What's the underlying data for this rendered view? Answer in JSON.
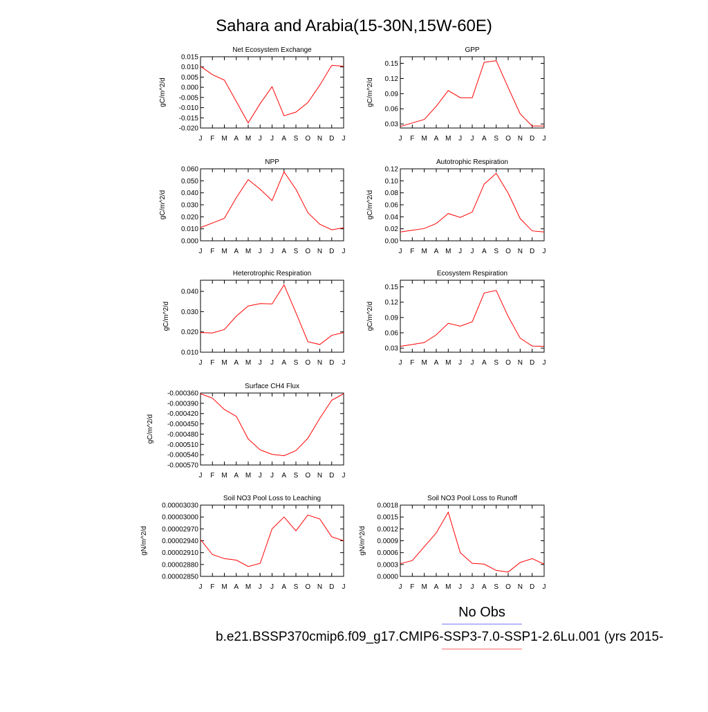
{
  "page": {
    "title": "Sahara and Arabia(15-30N,15W-60E)",
    "legend": {
      "obs_label": "No Obs",
      "obs_color": "#8c8cff",
      "case_label": "b.e21.BSSP370cmip6.f09_g17.CMIP6-SSP3-7.0-SSP1-2.6Lu.001 (yrs 2015-",
      "case_color": "#ff7f7f"
    }
  },
  "chart_data": [
    {
      "type": "line",
      "title": "Net Ecosystem Exchange",
      "ylabel": "gC/m^2/d",
      "x": [
        "J",
        "F",
        "M",
        "A",
        "M",
        "J",
        "J",
        "A",
        "S",
        "O",
        "N",
        "D",
        "J"
      ],
      "ylim": [
        -0.02,
        0.015
      ],
      "yticks": [
        "0.015",
        "0.010",
        "0.005",
        "0.000",
        "-0.005",
        "-0.010",
        "-0.015",
        "-0.020"
      ],
      "series": [
        {
          "color": "#ff0000",
          "values": [
            0.0103,
            0.0062,
            0.0035,
            -0.007,
            -0.0175,
            -0.008,
            0.0003,
            -0.014,
            -0.0122,
            -0.0075,
            0.001,
            0.0108,
            0.0103
          ]
        }
      ]
    },
    {
      "type": "line",
      "title": "GPP",
      "ylabel": "gC/m^2/d",
      "x": [
        "J",
        "F",
        "M",
        "A",
        "M",
        "J",
        "J",
        "A",
        "S",
        "O",
        "N",
        "D",
        "J"
      ],
      "ylim": [
        0.022,
        0.163
      ],
      "yticks": [
        "0.15",
        "0.12",
        "0.09",
        "0.06",
        "0.03"
      ],
      "series": [
        {
          "color": "#ff0000",
          "values": [
            0.025,
            0.032,
            0.039,
            0.065,
            0.096,
            0.082,
            0.082,
            0.152,
            0.155,
            0.102,
            0.05,
            0.026,
            0.026
          ]
        }
      ]
    },
    {
      "type": "line",
      "title": "NPP",
      "ylabel": "gC/m^2/d",
      "x": [
        "J",
        "F",
        "M",
        "A",
        "M",
        "J",
        "J",
        "A",
        "S",
        "O",
        "N",
        "D",
        "J"
      ],
      "ylim": [
        0.0,
        0.06
      ],
      "yticks": [
        "0.060",
        "0.050",
        "0.040",
        "0.030",
        "0.020",
        "0.010",
        "0.000"
      ],
      "series": [
        {
          "color": "#ff0000",
          "values": [
            0.011,
            0.0148,
            0.0187,
            0.036,
            0.051,
            0.043,
            0.0335,
            0.0575,
            0.043,
            0.0235,
            0.0138,
            0.0092,
            0.0108
          ]
        }
      ]
    },
    {
      "type": "line",
      "title": "Autotrophic Respiration",
      "ylabel": "gC/m^2/d",
      "x": [
        "J",
        "F",
        "M",
        "A",
        "M",
        "J",
        "J",
        "A",
        "S",
        "O",
        "N",
        "D",
        "J"
      ],
      "ylim": [
        0.0,
        0.12
      ],
      "yticks": [
        "0.12",
        "0.10",
        "0.08",
        "0.06",
        "0.04",
        "0.02",
        "0.00"
      ],
      "series": [
        {
          "color": "#ff0000",
          "values": [
            0.0148,
            0.0175,
            0.0205,
            0.029,
            0.0455,
            0.039,
            0.048,
            0.0945,
            0.1125,
            0.0795,
            0.037,
            0.0165,
            0.0148
          ]
        }
      ]
    },
    {
      "type": "line",
      "title": "Heterotrophic Respiration",
      "ylabel": "gC/m^2/d",
      "x": [
        "J",
        "F",
        "M",
        "A",
        "M",
        "J",
        "J",
        "A",
        "S",
        "O",
        "N",
        "D",
        "J"
      ],
      "ylim": [
        0.01,
        0.0455
      ],
      "yticks": [
        "0.040",
        "0.030",
        "0.020",
        "0.010"
      ],
      "series": [
        {
          "color": "#ff0000",
          "values": [
            0.0197,
            0.0195,
            0.0212,
            0.0278,
            0.0328,
            0.034,
            0.0338,
            0.0432,
            0.0295,
            0.0152,
            0.0138,
            0.0183,
            0.0197
          ]
        }
      ]
    },
    {
      "type": "line",
      "title": "Ecosystem Respiration",
      "ylabel": "gC/m^2/d",
      "x": [
        "J",
        "F",
        "M",
        "A",
        "M",
        "J",
        "J",
        "A",
        "S",
        "O",
        "N",
        "D",
        "J"
      ],
      "ylim": [
        0.022,
        0.163
      ],
      "yticks": [
        "0.15",
        "0.12",
        "0.09",
        "0.06",
        "0.03"
      ],
      "series": [
        {
          "color": "#ff0000",
          "values": [
            0.0335,
            0.037,
            0.041,
            0.056,
            0.0785,
            0.073,
            0.0815,
            0.138,
            0.143,
            0.092,
            0.0495,
            0.034,
            0.0335
          ]
        }
      ]
    },
    {
      "type": "line",
      "title": "Surface CH4 Flux",
      "ylabel": "gC/m^2/d",
      "x": [
        "J",
        "F",
        "M",
        "A",
        "M",
        "J",
        "J",
        "A",
        "S",
        "O",
        "N",
        "D",
        "J"
      ],
      "ylim": [
        -0.00057,
        -0.00036
      ],
      "yticks": [
        "-0.000360",
        "-0.000390",
        "-0.000420",
        "-0.000450",
        "-0.000480",
        "-0.000510",
        "-0.000540",
        "-0.000570"
      ],
      "series": [
        {
          "color": "#ff0000",
          "values": [
            -0.000362,
            -0.000375,
            -0.000408,
            -0.000428,
            -0.000494,
            -0.000526,
            -0.000539,
            -0.000543,
            -0.000528,
            -0.000492,
            -0.000434,
            -0.000381,
            -0.000362
          ]
        }
      ]
    },
    {
      "type": "line",
      "title": "Soil NO3 Pool Loss to Leaching",
      "ylabel": "gN/m^2/d",
      "x": [
        "J",
        "F",
        "M",
        "A",
        "M",
        "J",
        "J",
        "A",
        "S",
        "O",
        "N",
        "D",
        "J"
      ],
      "ylim": [
        2.85e-05,
        3.03e-05
      ],
      "yticks": [
        "0.00003030",
        "0.00003000",
        "0.00002970",
        "0.00002940",
        "0.00002910",
        "0.00002880",
        "0.00002850"
      ],
      "series": [
        {
          "color": "#ff0000",
          "values": [
            2.943e-05,
            2.905e-05,
            2.895e-05,
            2.891e-05,
            2.875e-05,
            2.883e-05,
            2.97e-05,
            3e-05,
            2.965e-05,
            3.005e-05,
            2.995e-05,
            2.95e-05,
            2.94e-05
          ]
        }
      ]
    },
    {
      "type": "line",
      "title": "Soil NO3 Pool Loss to Runoff",
      "ylabel": "gN/m^2/d",
      "x": [
        "J",
        "F",
        "M",
        "A",
        "M",
        "J",
        "J",
        "A",
        "S",
        "O",
        "N",
        "D",
        "J"
      ],
      "ylim": [
        0.0,
        0.0018
      ],
      "yticks": [
        "0.0018",
        "0.0015",
        "0.0012",
        "0.0009",
        "0.0006",
        "0.0003",
        "0.0000"
      ],
      "series": [
        {
          "color": "#ff0000",
          "values": [
            0.00032,
            0.0004,
            0.00075,
            0.0011,
            0.00162,
            0.0006,
            0.00033,
            0.00031,
            0.00015,
            0.00011,
            0.00035,
            0.00045,
            0.00031
          ]
        }
      ]
    }
  ]
}
